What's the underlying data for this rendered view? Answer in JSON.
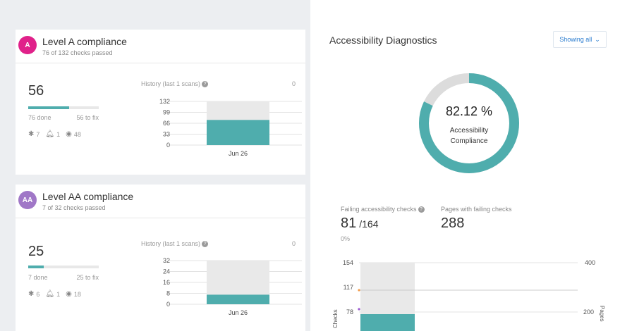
{
  "level_a": {
    "avatar": "A",
    "title": "Level A compliance",
    "subtitle": "76 of 132 checks passed",
    "to_fix": "56",
    "progress": 0.58,
    "done_label": "76 done",
    "fix_label": "56 to fix",
    "issues": [
      {
        "icon": "bug-icon",
        "count": "7"
      },
      {
        "icon": "bell-icon",
        "count": "1"
      },
      {
        "icon": "eye-icon",
        "count": "48"
      }
    ],
    "history_label": "History (last 1 scans)",
    "history_zero": "0",
    "chart_data": {
      "type": "bar",
      "categories": [
        "Jun 26"
      ],
      "yticks": [
        "132",
        "99",
        "66",
        "33",
        "0"
      ],
      "ylim": [
        0,
        132
      ],
      "total": 132,
      "values": [
        76
      ]
    }
  },
  "level_aa": {
    "avatar": "AA",
    "title": "Level AA compliance",
    "subtitle": "7 of 32 checks passed",
    "to_fix": "25",
    "progress": 0.22,
    "done_label": "7 done",
    "fix_label": "25 to fix",
    "issues": [
      {
        "icon": "bug-icon",
        "count": "6"
      },
      {
        "icon": "bell-icon",
        "count": "1"
      },
      {
        "icon": "eye-icon",
        "count": "18"
      }
    ],
    "history_label": "History (last 1 scans)",
    "history_zero": "0",
    "chart_data": {
      "type": "bar",
      "categories": [
        "Jun 26"
      ],
      "yticks": [
        "32",
        "24",
        "16",
        "8",
        "0"
      ],
      "ylim": [
        0,
        32
      ],
      "total": 32,
      "values": [
        7
      ]
    }
  },
  "diagnostics": {
    "title": "Accessibility Diagnostics",
    "filter_label": "Showing all",
    "compliance_value": "82.12 %",
    "compliance_fraction": 0.8212,
    "compliance_caption_1": "Accessibility",
    "compliance_caption_2": "Compliance",
    "failing_label": "Failing accessibility checks",
    "failing_value": "81",
    "failing_total": "/164",
    "failing_pct": "0%",
    "pages_label": "Pages with failing checks",
    "pages_value": "288",
    "left_axis_title": "Checks",
    "right_axis_title": "Pages",
    "left_ticks": [
      "154",
      "117",
      "78"
    ],
    "right_ticks": [
      "400",
      "200"
    ]
  },
  "colors": {
    "teal": "#4fadad",
    "gray_bar": "#e9e9e9",
    "pink": "#e0218a",
    "purple": "#a077c7"
  }
}
